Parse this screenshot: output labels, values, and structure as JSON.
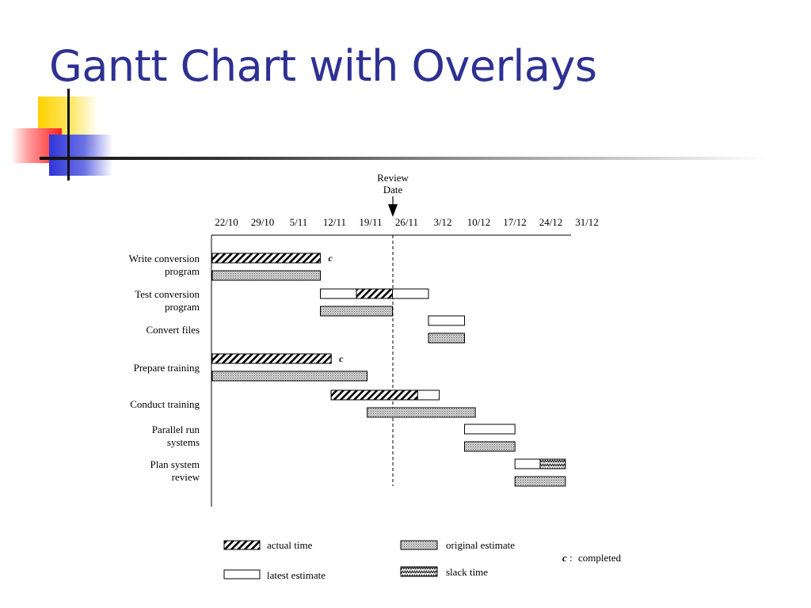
{
  "slide": {
    "title": "Gantt Chart with Overlays"
  },
  "chart_data": {
    "type": "gantt",
    "review_date": {
      "label_line1": "Review",
      "label_line2": "Date",
      "date": "26/11"
    },
    "x_ticks": [
      "22/10",
      "29/10",
      "5/11",
      "12/11",
      "19/11",
      "26/11",
      "3/12",
      "10/12",
      "17/12",
      "24/12",
      "31/12"
    ],
    "units": "weeks from 22/10",
    "tasks": [
      {
        "name_line1": "Write conversion",
        "name_line2": "program",
        "latest_estimate": [
          0,
          3
        ],
        "actual": [
          0,
          3
        ],
        "slack": null,
        "completed": true,
        "original_estimate": [
          0,
          3
        ]
      },
      {
        "name_line1": "Test conversion",
        "name_line2": "program",
        "latest_estimate": [
          3,
          6
        ],
        "actual": [
          4,
          5
        ],
        "slack": null,
        "completed": false,
        "original_estimate": [
          3,
          5
        ]
      },
      {
        "name_line1": "Convert files",
        "name_line2": "",
        "latest_estimate": [
          6,
          7
        ],
        "actual": null,
        "slack": null,
        "completed": false,
        "original_estimate": [
          6,
          7
        ]
      },
      {
        "name_line1": "Prepare training",
        "name_line2": "",
        "latest_estimate": [
          0,
          3.3
        ],
        "actual": [
          0,
          3.3
        ],
        "slack": null,
        "completed": true,
        "original_estimate": [
          0,
          4.3
        ]
      },
      {
        "name_line1": "Conduct training",
        "name_line2": "",
        "latest_estimate": [
          3.3,
          6.3
        ],
        "actual": [
          3.3,
          5.7
        ],
        "slack": null,
        "completed": false,
        "original_estimate": [
          4.3,
          7.3
        ]
      },
      {
        "name_line1": "Parallel run",
        "name_line2": "systems",
        "latest_estimate": [
          7,
          8.4
        ],
        "actual": null,
        "slack": null,
        "completed": false,
        "original_estimate": [
          7,
          8.4
        ]
      },
      {
        "name_line1": "Plan system",
        "name_line2": "review",
        "latest_estimate": [
          8.4,
          9.1
        ],
        "actual": null,
        "slack": [
          9.1,
          9.8
        ],
        "completed": false,
        "original_estimate": [
          8.4,
          9.8
        ]
      }
    ],
    "completed_marker": "c",
    "legend": {
      "actual": "actual time",
      "latest": "latest estimate",
      "original": "original estimate",
      "slack": "slack time",
      "completed_key": "c",
      "completed_text": "completed"
    }
  }
}
